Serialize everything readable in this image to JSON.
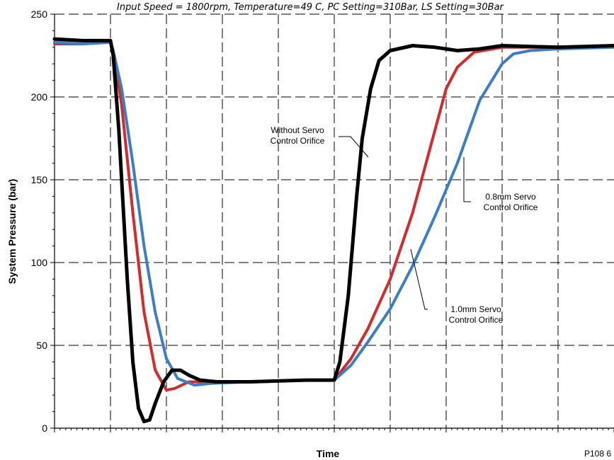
{
  "chart_data": {
    "type": "line",
    "subtitle": "Input Speed = 1800rpm, Temperature=49  C, PC Setting=310Bar, LS Setting=30Bar",
    "xlabel": "Time",
    "ylabel": "System Pressure (bar)",
    "ylim": [
      0,
      250
    ],
    "yticks": [
      "0",
      "50",
      "100",
      "150",
      "200",
      "250"
    ],
    "xlim": [
      0,
      10
    ],
    "grid": true,
    "figure_id": "P108 6",
    "series": [
      {
        "color": "#d42a2a",
        "x": [
          0,
          0.5,
          1.0,
          1.05,
          1.2,
          1.4,
          1.6,
          1.8,
          2.0,
          2.15,
          2.4,
          2.8,
          3.5,
          4.5,
          5.0,
          5.3,
          5.6,
          6.0,
          6.4,
          6.8,
          7.0,
          7.2,
          7.5,
          8.0,
          8.5,
          9.0,
          10.0
        ],
        "y": [
          232,
          232,
          233,
          228,
          195,
          130,
          70,
          35,
          23,
          24,
          28,
          28,
          28,
          29,
          29,
          42,
          60,
          90,
          130,
          180,
          205,
          218,
          227,
          230,
          230,
          230,
          231
        ]
      },
      {
        "color": "#3a7dc9",
        "x": [
          0,
          0.5,
          1.0,
          1.05,
          1.2,
          1.4,
          1.6,
          1.8,
          2.0,
          2.2,
          2.5,
          2.8,
          3.5,
          4.5,
          5.0,
          5.3,
          5.6,
          6.0,
          6.4,
          6.8,
          7.2,
          7.6,
          8.0,
          8.2,
          8.5,
          9.0,
          10.0
        ],
        "y": [
          233,
          232,
          233,
          228,
          205,
          160,
          110,
          70,
          42,
          30,
          26,
          27,
          28,
          29,
          29,
          38,
          52,
          72,
          98,
          128,
          160,
          198,
          220,
          226,
          228,
          229,
          230
        ]
      },
      {
        "color": "#000000",
        "x": [
          0,
          0.5,
          1.0,
          1.05,
          1.15,
          1.3,
          1.4,
          1.5,
          1.6,
          1.7,
          1.8,
          1.95,
          2.1,
          2.25,
          2.4,
          2.6,
          2.9,
          3.5,
          4.5,
          5.0,
          5.1,
          5.25,
          5.4,
          5.5,
          5.65,
          5.8,
          6.0,
          6.4,
          6.8,
          7.2,
          7.6,
          8.0,
          9.0,
          10.0
        ],
        "y": [
          235,
          234,
          234,
          225,
          180,
          90,
          40,
          12,
          4,
          5,
          15,
          28,
          35,
          35,
          32,
          29,
          28,
          28,
          29,
          29,
          40,
          80,
          140,
          175,
          205,
          222,
          228,
          231,
          230,
          228,
          229,
          231,
          230,
          231
        ]
      }
    ],
    "annotations": [
      {
        "lines": [
          "Without Servo",
          "Control Orifice"
        ]
      },
      {
        "lines": [
          "0.8mm Servo",
          "Control Orifice"
        ]
      },
      {
        "lines": [
          "1.0mm Servo",
          "Control Orifice"
        ]
      }
    ]
  }
}
